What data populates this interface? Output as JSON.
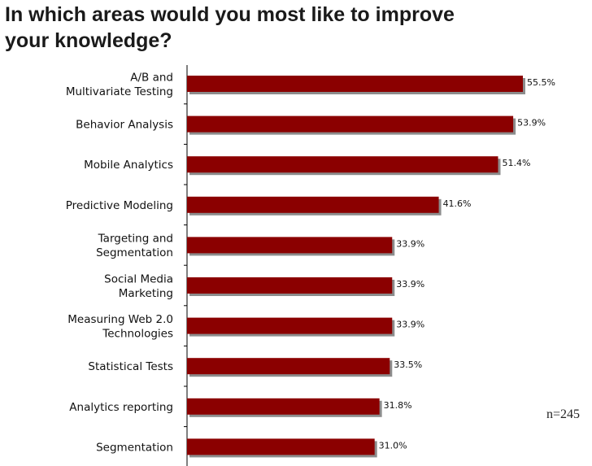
{
  "title": [
    "In which areas would you most like to improve",
    "your knowledge?"
  ],
  "note": "n=245",
  "colors": {
    "bar": "#8b0000",
    "shadow": "#8c8c8c",
    "axis": "#000000"
  },
  "chart_data": {
    "type": "bar",
    "orientation": "horizontal",
    "categories": [
      [
        "A/B and",
        "Multivariate Testing"
      ],
      [
        "Behavior Analysis"
      ],
      [
        "Mobile Analytics"
      ],
      [
        "Predictive Modeling"
      ],
      [
        "Targeting and",
        "Segmentation"
      ],
      [
        "Social Media",
        "Marketing"
      ],
      [
        "Measuring Web 2.0",
        "Technologies"
      ],
      [
        "Statistical Tests"
      ],
      [
        "Analytics reporting"
      ],
      [
        "Segmentation"
      ]
    ],
    "values": [
      55.5,
      53.9,
      51.4,
      41.6,
      33.9,
      33.9,
      33.9,
      33.5,
      31.8,
      31.0
    ],
    "value_labels": [
      "55.5%",
      "53.9%",
      "51.4%",
      "41.6%",
      "33.9%",
      "33.9%",
      "33.9%",
      "33.5%",
      "31.8%",
      "31.0%"
    ],
    "xlim": [
      0,
      61
    ],
    "grid": false,
    "legend": "none"
  }
}
